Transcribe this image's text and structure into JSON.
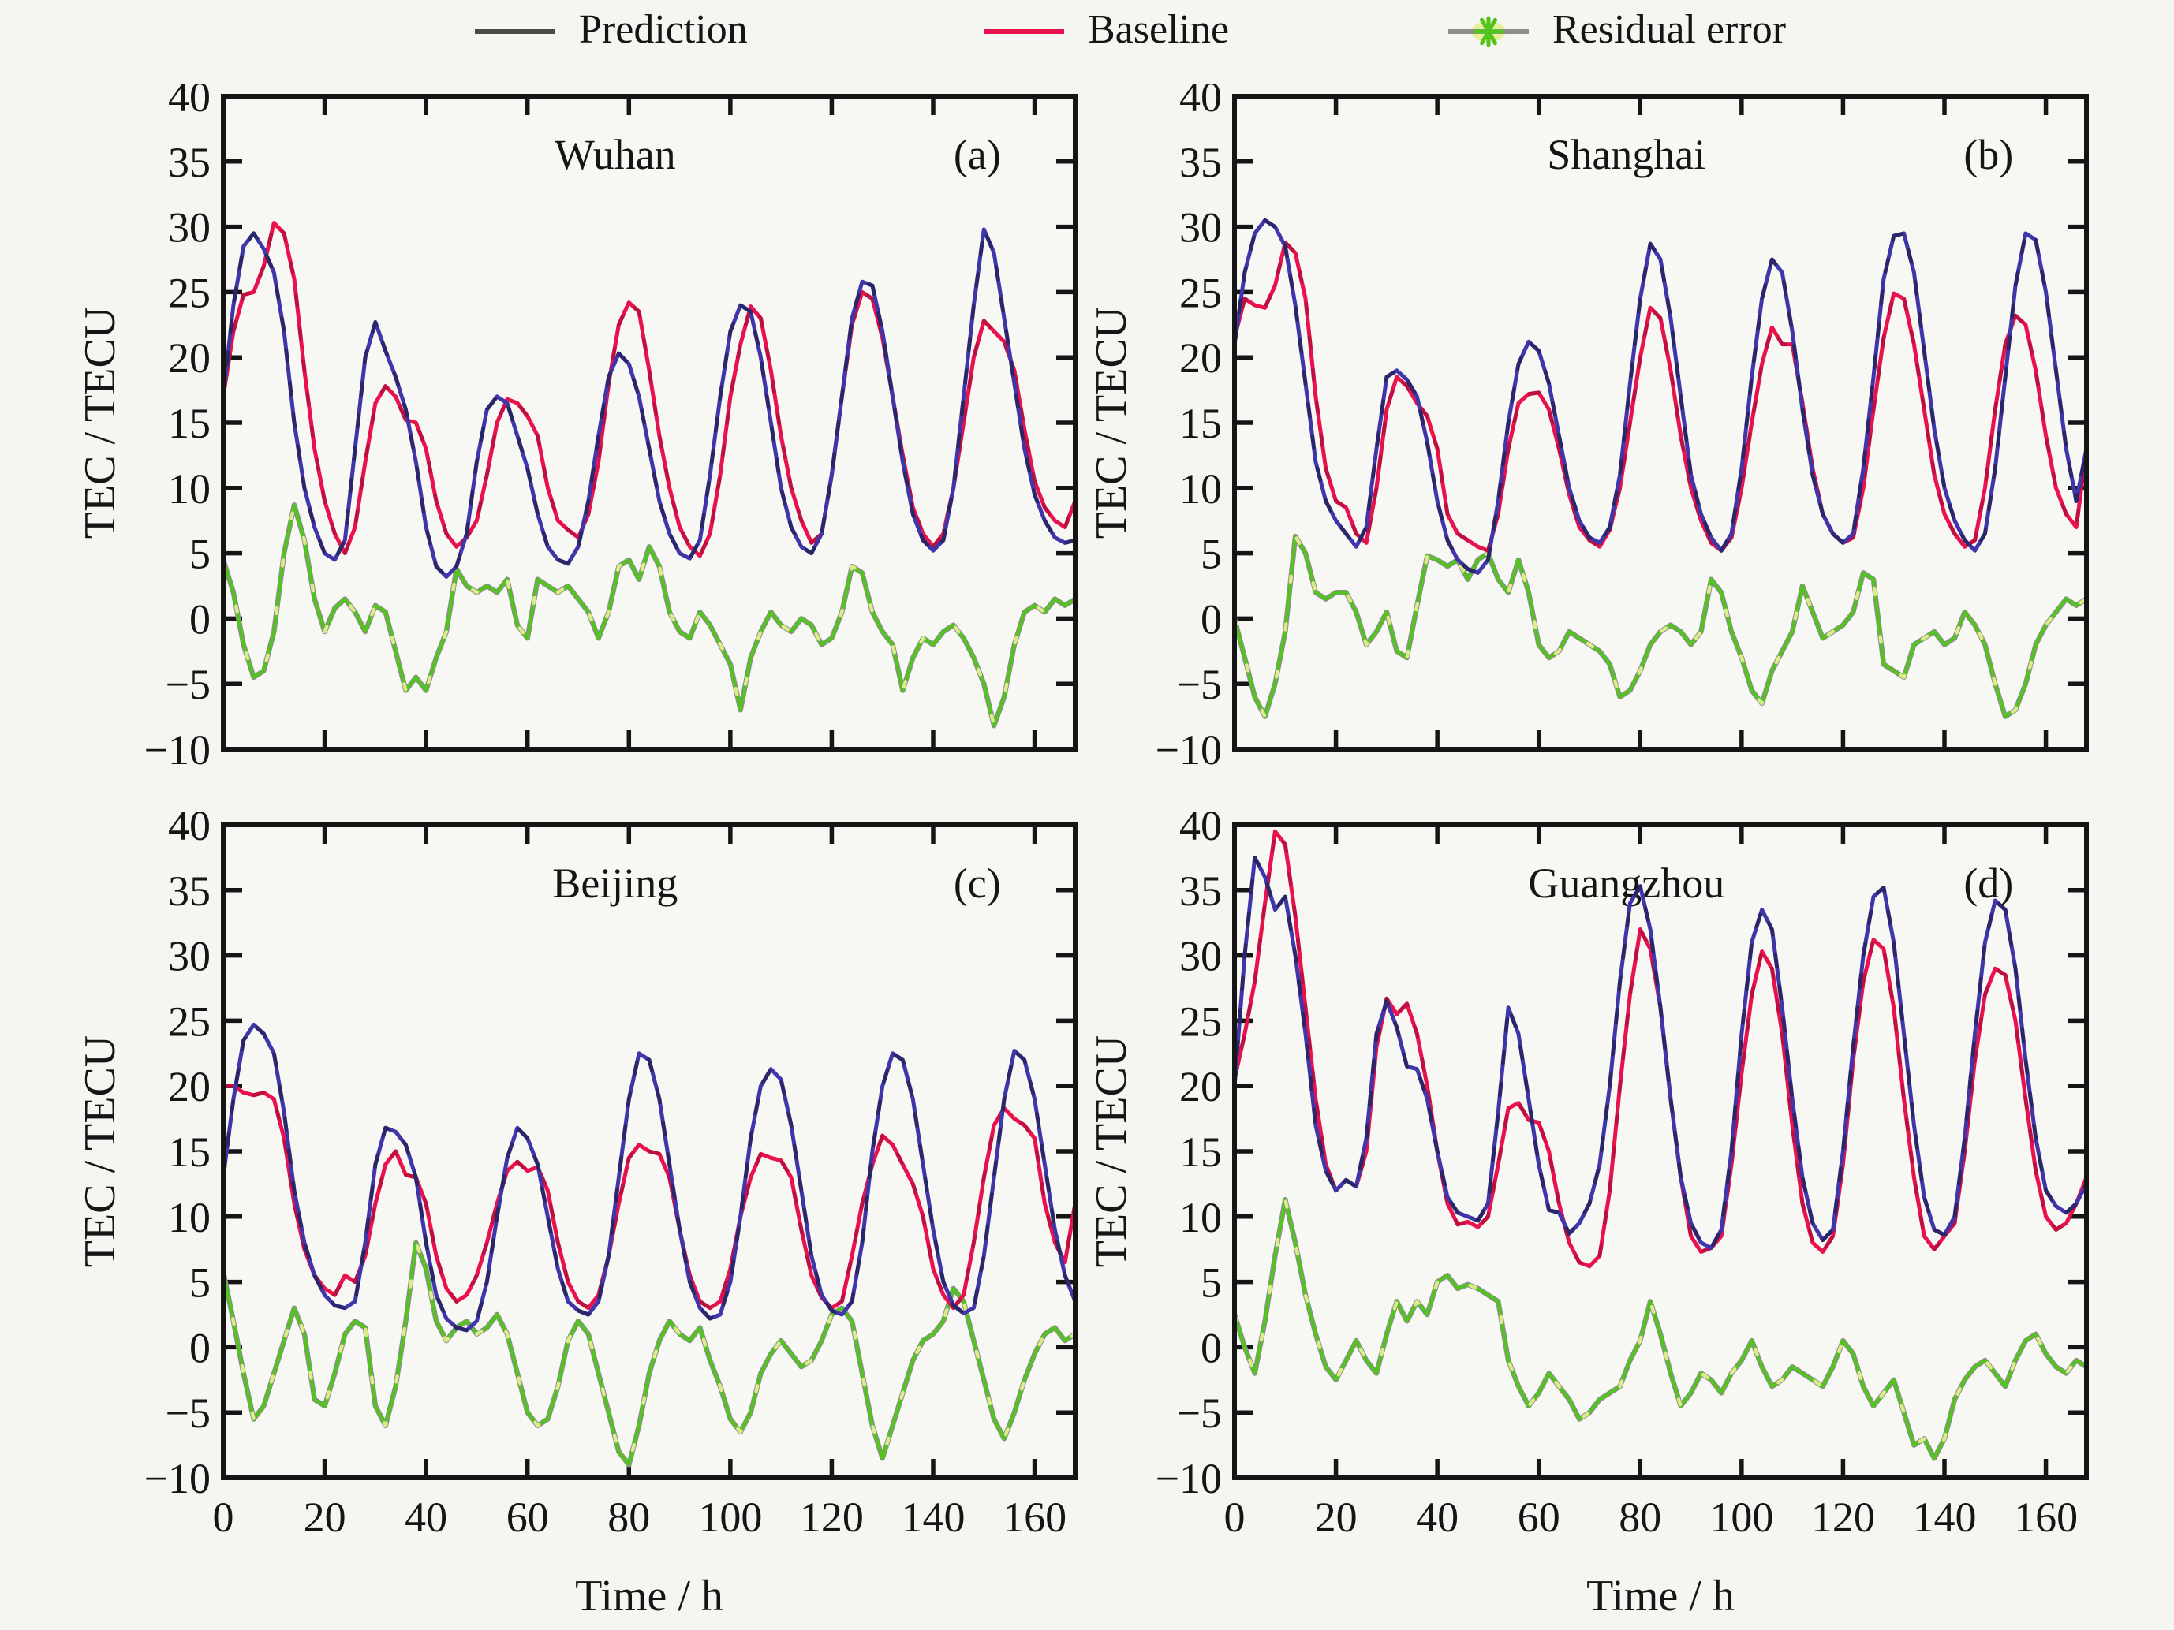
{
  "style": {
    "background": "#f5f5f2",
    "plot_background": "#f7f7f4",
    "frame_color": "#151515",
    "text_color": "#151515",
    "prediction_color": "#3f36aa",
    "prediction_legend_color": "#4a4a4a",
    "baseline_color": "#e8124d",
    "residual_line_color": "#8e8e8e",
    "residual_marker_color": "#52c51d",
    "residual_glow_color": "#e2ef8d"
  },
  "legend": [
    {
      "label": "Prediction",
      "type": "line"
    },
    {
      "label": "Baseline",
      "type": "line"
    },
    {
      "label": "Residual error",
      "type": "line-star"
    }
  ],
  "axes": {
    "x_label": "Time / h",
    "y_label": "TEC / TECU",
    "x_ticks": [
      0,
      20,
      40,
      60,
      80,
      100,
      120,
      140,
      160
    ],
    "y_ticks": [
      40,
      35,
      30,
      25,
      20,
      15,
      10,
      5,
      0,
      -5,
      -10
    ],
    "xlim": [
      0,
      168
    ],
    "ylim": [
      -10,
      40
    ],
    "grid": false,
    "legend_position": "top"
  },
  "chart_data": [
    {
      "type": "line",
      "panel": "(a)",
      "station": "Wuhan",
      "x_start": 0,
      "x_step_h": 2,
      "x_end": 168,
      "series": [
        {
          "name": "Prediction",
          "values": [
            17,
            24,
            28.5,
            29.5,
            28.3,
            26.5,
            22,
            15,
            10,
            7,
            5,
            4.5,
            6,
            13,
            20,
            22.7,
            20.5,
            18.5,
            16,
            12,
            7,
            4,
            3.2,
            4,
            6.5,
            12,
            16,
            17,
            16.5,
            14,
            11.5,
            8,
            5.5,
            4.5,
            4.2,
            5.5,
            9,
            14,
            18.5,
            20.3,
            19.5,
            17,
            13,
            9,
            6.5,
            5,
            4.6,
            6,
            11,
            17,
            22,
            24,
            23.5,
            20,
            15,
            10,
            7,
            5.5,
            5,
            6.5,
            11,
            17,
            23,
            25.8,
            25.5,
            22,
            17,
            12,
            8,
            6,
            5.2,
            6,
            10,
            17,
            24,
            29.8,
            28,
            23,
            18,
            13,
            9.5,
            7.5,
            6.2,
            5.8,
            6
          ]
        },
        {
          "name": "Baseline",
          "values": [
            17,
            22,
            24.8,
            25,
            27,
            30.3,
            29.5,
            26,
            19,
            13,
            9,
            6.5,
            5,
            7,
            12,
            16.5,
            17.8,
            17,
            15.2,
            15,
            13,
            9,
            6.5,
            5.5,
            6.2,
            7.5,
            11,
            15,
            16.8,
            16.5,
            15.5,
            14,
            10,
            7.5,
            6.8,
            6.2,
            8,
            12,
            18,
            22.5,
            24.2,
            23.5,
            19,
            14,
            10,
            7,
            5.5,
            4.8,
            6.5,
            11,
            17,
            21,
            23.9,
            23,
            19,
            14,
            10,
            7.5,
            5.8,
            6.5,
            11,
            17,
            22.5,
            25,
            24.5,
            21.5,
            17,
            12.5,
            8.5,
            6.5,
            5.5,
            6.5,
            10,
            15,
            20,
            22.8,
            22,
            21.2,
            19,
            14.5,
            10.5,
            8.5,
            7.5,
            7,
            9
          ]
        },
        {
          "name": "Residual error",
          "values": [
            4.5,
            2,
            -2,
            -4.5,
            -4,
            -1,
            5,
            8.7,
            6,
            1.5,
            -1,
            0.8,
            1.5,
            0.5,
            -1,
            1,
            0.5,
            -2.5,
            -5.5,
            -4.5,
            -5.5,
            -3,
            -1,
            3.8,
            2.5,
            2,
            2.5,
            2,
            3,
            -0.5,
            -1.5,
            3,
            2.5,
            2,
            2.5,
            1.5,
            0.5,
            -1.5,
            0.5,
            4,
            4.5,
            3,
            5.5,
            4,
            0.5,
            -1,
            -1.5,
            0.5,
            -0.5,
            -2,
            -3.5,
            -7,
            -3,
            -1,
            0.5,
            -0.5,
            -1,
            0,
            -0.5,
            -2,
            -1.5,
            0.5,
            4,
            3.5,
            0.5,
            -1,
            -2,
            -5.5,
            -3,
            -1.5,
            -2,
            -1,
            -0.5,
            -1.5,
            -3,
            -5,
            -8.2,
            -6,
            -2,
            0.5,
            1,
            0.5,
            1.5,
            1,
            1.5
          ]
        }
      ]
    },
    {
      "type": "line",
      "panel": "(b)",
      "station": "Shanghai",
      "x_start": 0,
      "x_step_h": 2,
      "x_end": 168,
      "series": [
        {
          "name": "Prediction",
          "values": [
            21,
            26.5,
            29.5,
            30.5,
            30,
            28.5,
            24,
            18,
            12,
            9,
            7.5,
            6.5,
            5.5,
            7,
            13,
            18.5,
            19,
            18.3,
            17,
            13.5,
            9,
            6,
            4.5,
            3.8,
            3.5,
            4.5,
            9,
            15,
            19.5,
            21.2,
            20.5,
            18,
            14,
            10,
            7.5,
            6.2,
            5.8,
            7,
            11,
            18,
            24.5,
            28.7,
            27.5,
            23,
            17,
            11,
            8,
            6.2,
            5.2,
            6.5,
            11.5,
            18.5,
            24.5,
            27.5,
            26.5,
            22,
            16,
            11,
            8,
            6.5,
            5.8,
            6.5,
            11.5,
            18.5,
            26,
            29.3,
            29.5,
            26.5,
            20.5,
            14.5,
            10,
            7.5,
            6,
            5.2,
            6.5,
            11.5,
            18.5,
            25.5,
            29.5,
            29,
            25,
            19,
            13,
            9,
            13
          ]
        },
        {
          "name": "Baseline",
          "values": [
            21.5,
            24.5,
            24,
            23.8,
            25.5,
            28.8,
            28,
            24.5,
            17,
            11.5,
            9,
            8.5,
            6.5,
            5.8,
            10,
            16,
            18.5,
            17.8,
            16.5,
            15.5,
            13,
            8,
            6.5,
            6,
            5.5,
            5.2,
            8,
            13,
            16.5,
            17.2,
            17.3,
            16,
            13,
            9.5,
            7,
            6,
            5.5,
            6.8,
            10,
            15,
            20,
            23.8,
            23,
            19,
            14,
            10,
            7.5,
            5.8,
            5.2,
            6.2,
            10,
            15,
            19.5,
            22.3,
            21,
            21,
            16.5,
            11.5,
            8,
            6.5,
            5.8,
            6.2,
            10,
            16,
            21.5,
            24.9,
            24.5,
            21,
            16,
            11,
            8,
            6.5,
            5.5,
            6,
            10,
            16,
            21,
            23.2,
            22.5,
            19,
            14,
            10,
            8,
            7,
            13
          ]
        },
        {
          "name": "Residual error",
          "values": [
            0,
            -3,
            -6,
            -7.5,
            -5,
            -1,
            6.3,
            5,
            2,
            1.5,
            2,
            2,
            0.5,
            -2,
            -1,
            0.5,
            -2.5,
            -3,
            1,
            4.8,
            4.5,
            4,
            4.5,
            3,
            4.5,
            5,
            3,
            2,
            4.5,
            2,
            -2,
            -3,
            -2.5,
            -1,
            -1.5,
            -2,
            -2.5,
            -3.5,
            -6,
            -5.5,
            -4,
            -2,
            -1,
            -0.5,
            -1,
            -2,
            -1,
            3,
            2,
            -1,
            -3,
            -5.5,
            -6.5,
            -4,
            -2.5,
            -1,
            2.5,
            0.5,
            -1.5,
            -1,
            -0.5,
            0.5,
            3.5,
            3,
            -3.5,
            -4,
            -4.5,
            -2,
            -1.5,
            -1,
            -2,
            -1.5,
            0.5,
            -0.5,
            -2,
            -5,
            -7.5,
            -7,
            -5,
            -2,
            -0.5,
            0.5,
            1.5,
            1,
            1.5
          ]
        }
      ]
    },
    {
      "type": "line",
      "panel": "(c)",
      "station": "Beijing",
      "x_start": 0,
      "x_step_h": 2,
      "x_end": 168,
      "series": [
        {
          "name": "Prediction",
          "values": [
            13,
            19,
            23.5,
            24.7,
            24,
            22.5,
            18,
            12,
            8,
            5.5,
            4,
            3.2,
            3,
            3.5,
            8,
            14,
            16.8,
            16.5,
            15.5,
            13,
            8,
            4,
            2.2,
            1.5,
            1.3,
            2,
            5,
            10,
            14.5,
            16.8,
            16,
            14,
            10,
            6,
            3.5,
            2.8,
            2.5,
            3.5,
            7,
            13,
            19,
            22.5,
            22,
            19,
            14,
            9,
            5,
            3,
            2.2,
            2.5,
            5,
            10,
            16,
            20,
            21.3,
            20.5,
            17,
            12,
            7,
            4,
            2.8,
            2.5,
            3.5,
            8,
            15,
            20,
            22.5,
            22,
            19,
            14,
            9,
            5,
            3.2,
            2.6,
            3,
            7,
            13,
            19,
            22.7,
            22,
            19,
            14,
            9,
            5.5,
            3.5
          ]
        },
        {
          "name": "Baseline",
          "values": [
            20,
            20,
            19.5,
            19.3,
            19.5,
            19,
            16,
            11,
            7.5,
            5.5,
            4.5,
            4,
            5.5,
            5,
            7,
            11,
            14,
            15,
            13.2,
            13,
            11,
            7,
            4.5,
            3.5,
            4,
            5.5,
            8,
            11,
            13.5,
            14.2,
            13.5,
            13.8,
            12,
            8,
            5,
            3.5,
            3,
            4,
            7,
            11,
            14.5,
            15.5,
            15,
            14.8,
            13,
            9,
            5.5,
            3.5,
            3,
            3.5,
            6,
            10,
            13,
            14.8,
            14.5,
            14.3,
            13,
            9,
            5.5,
            3.8,
            3,
            3.5,
            7,
            11,
            14,
            16.2,
            15.5,
            14,
            12.5,
            10,
            6,
            4,
            3,
            4,
            8,
            13,
            17,
            18.3,
            17.5,
            17,
            16,
            11,
            8,
            6.5,
            11
          ]
        },
        {
          "name": "Residual error",
          "values": [
            5.8,
            2,
            -2,
            -5.5,
            -4.5,
            -2,
            0.5,
            3,
            1,
            -4,
            -4.5,
            -2,
            1,
            2,
            1.5,
            -4.5,
            -6,
            -3,
            2,
            8,
            6,
            2,
            0.5,
            1.5,
            2,
            1,
            1.5,
            2.5,
            1,
            -2,
            -5,
            -6,
            -5.5,
            -3,
            0.5,
            2,
            1,
            -2,
            -5,
            -8,
            -9,
            -6,
            -2,
            0.5,
            2,
            1,
            0.5,
            1.5,
            -1,
            -3,
            -5.5,
            -6.5,
            -5,
            -2,
            -0.5,
            0.5,
            -0.5,
            -1.5,
            -1,
            0.5,
            2.5,
            3,
            2,
            -2,
            -6,
            -8.5,
            -6,
            -3.5,
            -1,
            0.5,
            1,
            2,
            4.5,
            3.5,
            0.5,
            -2.5,
            -5.5,
            -7,
            -5,
            -2.5,
            -0.5,
            1,
            1.5,
            0.5,
            1
          ]
        }
      ]
    },
    {
      "type": "line",
      "panel": "(d)",
      "station": "Guangzhou",
      "x_start": 0,
      "x_step_h": 2,
      "x_end": 168,
      "series": [
        {
          "name": "Prediction",
          "values": [
            20,
            30,
            37.5,
            36,
            33.5,
            34.5,
            30,
            24,
            17,
            13.5,
            12,
            12.8,
            12.3,
            16,
            24,
            26.5,
            24.5,
            21.5,
            21.3,
            19,
            15,
            11.5,
            10.3,
            10,
            9.7,
            11,
            18,
            26,
            24,
            19,
            14,
            10.5,
            10.3,
            8.7,
            9.5,
            11,
            14,
            20,
            28,
            34,
            35.3,
            32,
            26,
            19,
            13,
            9.5,
            8,
            7.6,
            9,
            15,
            24,
            31,
            33.5,
            32,
            26,
            19,
            13,
            9.5,
            8.2,
            9,
            15,
            23,
            30,
            34.5,
            35.2,
            31,
            24,
            17,
            11.5,
            9,
            8.6,
            10,
            16,
            24,
            31,
            34.2,
            33.5,
            29,
            22,
            16,
            12,
            10.8,
            10.3,
            11,
            12.5
          ]
        },
        {
          "name": "Baseline",
          "values": [
            20.5,
            24,
            28,
            34,
            39.5,
            38.5,
            33,
            26,
            19,
            14,
            12,
            12.8,
            12.3,
            15,
            23,
            26.7,
            25.5,
            26.3,
            24,
            20,
            15,
            11,
            9.4,
            9.6,
            9.2,
            10,
            14,
            18.3,
            18.7,
            17.4,
            17.2,
            15,
            11,
            8,
            6.5,
            6.2,
            7,
            12,
            20,
            27,
            32,
            30.5,
            26,
            19,
            13,
            8.5,
            7.3,
            7.6,
            8.5,
            14,
            21,
            27,
            30.3,
            29,
            24,
            17,
            11,
            8,
            7.3,
            8.5,
            14,
            22,
            28,
            31.2,
            30.5,
            26,
            19,
            13,
            8.5,
            7.5,
            8.5,
            9.5,
            15,
            22,
            27,
            29,
            28.5,
            25,
            19,
            13.5,
            10,
            9,
            9.5,
            11,
            13
          ]
        },
        {
          "name": "Residual error",
          "values": [
            2.5,
            0,
            -2,
            2,
            7,
            11.3,
            8,
            4,
            1,
            -1.5,
            -2.5,
            -1,
            0.5,
            -1,
            -2,
            1,
            3.5,
            2,
            3.5,
            2.5,
            5,
            5.5,
            4.5,
            4.8,
            4.5,
            4,
            3.5,
            -1,
            -3,
            -4.5,
            -3.5,
            -2,
            -3,
            -4,
            -5.5,
            -5,
            -4,
            -3.5,
            -3,
            -1,
            0.5,
            3.5,
            1,
            -2,
            -4.5,
            -3.5,
            -2,
            -2.5,
            -3.5,
            -2,
            -1,
            0.5,
            -1.5,
            -3,
            -2.5,
            -1.5,
            -2,
            -2.5,
            -3,
            -1.5,
            0.5,
            -0.5,
            -3,
            -4.5,
            -3.5,
            -2.5,
            -5,
            -7.5,
            -7,
            -8.5,
            -7,
            -4,
            -2.5,
            -1.5,
            -1,
            -2,
            -3,
            -1,
            0.5,
            1,
            -0.5,
            -1.5,
            -2,
            -1,
            -1.5
          ]
        }
      ]
    }
  ]
}
